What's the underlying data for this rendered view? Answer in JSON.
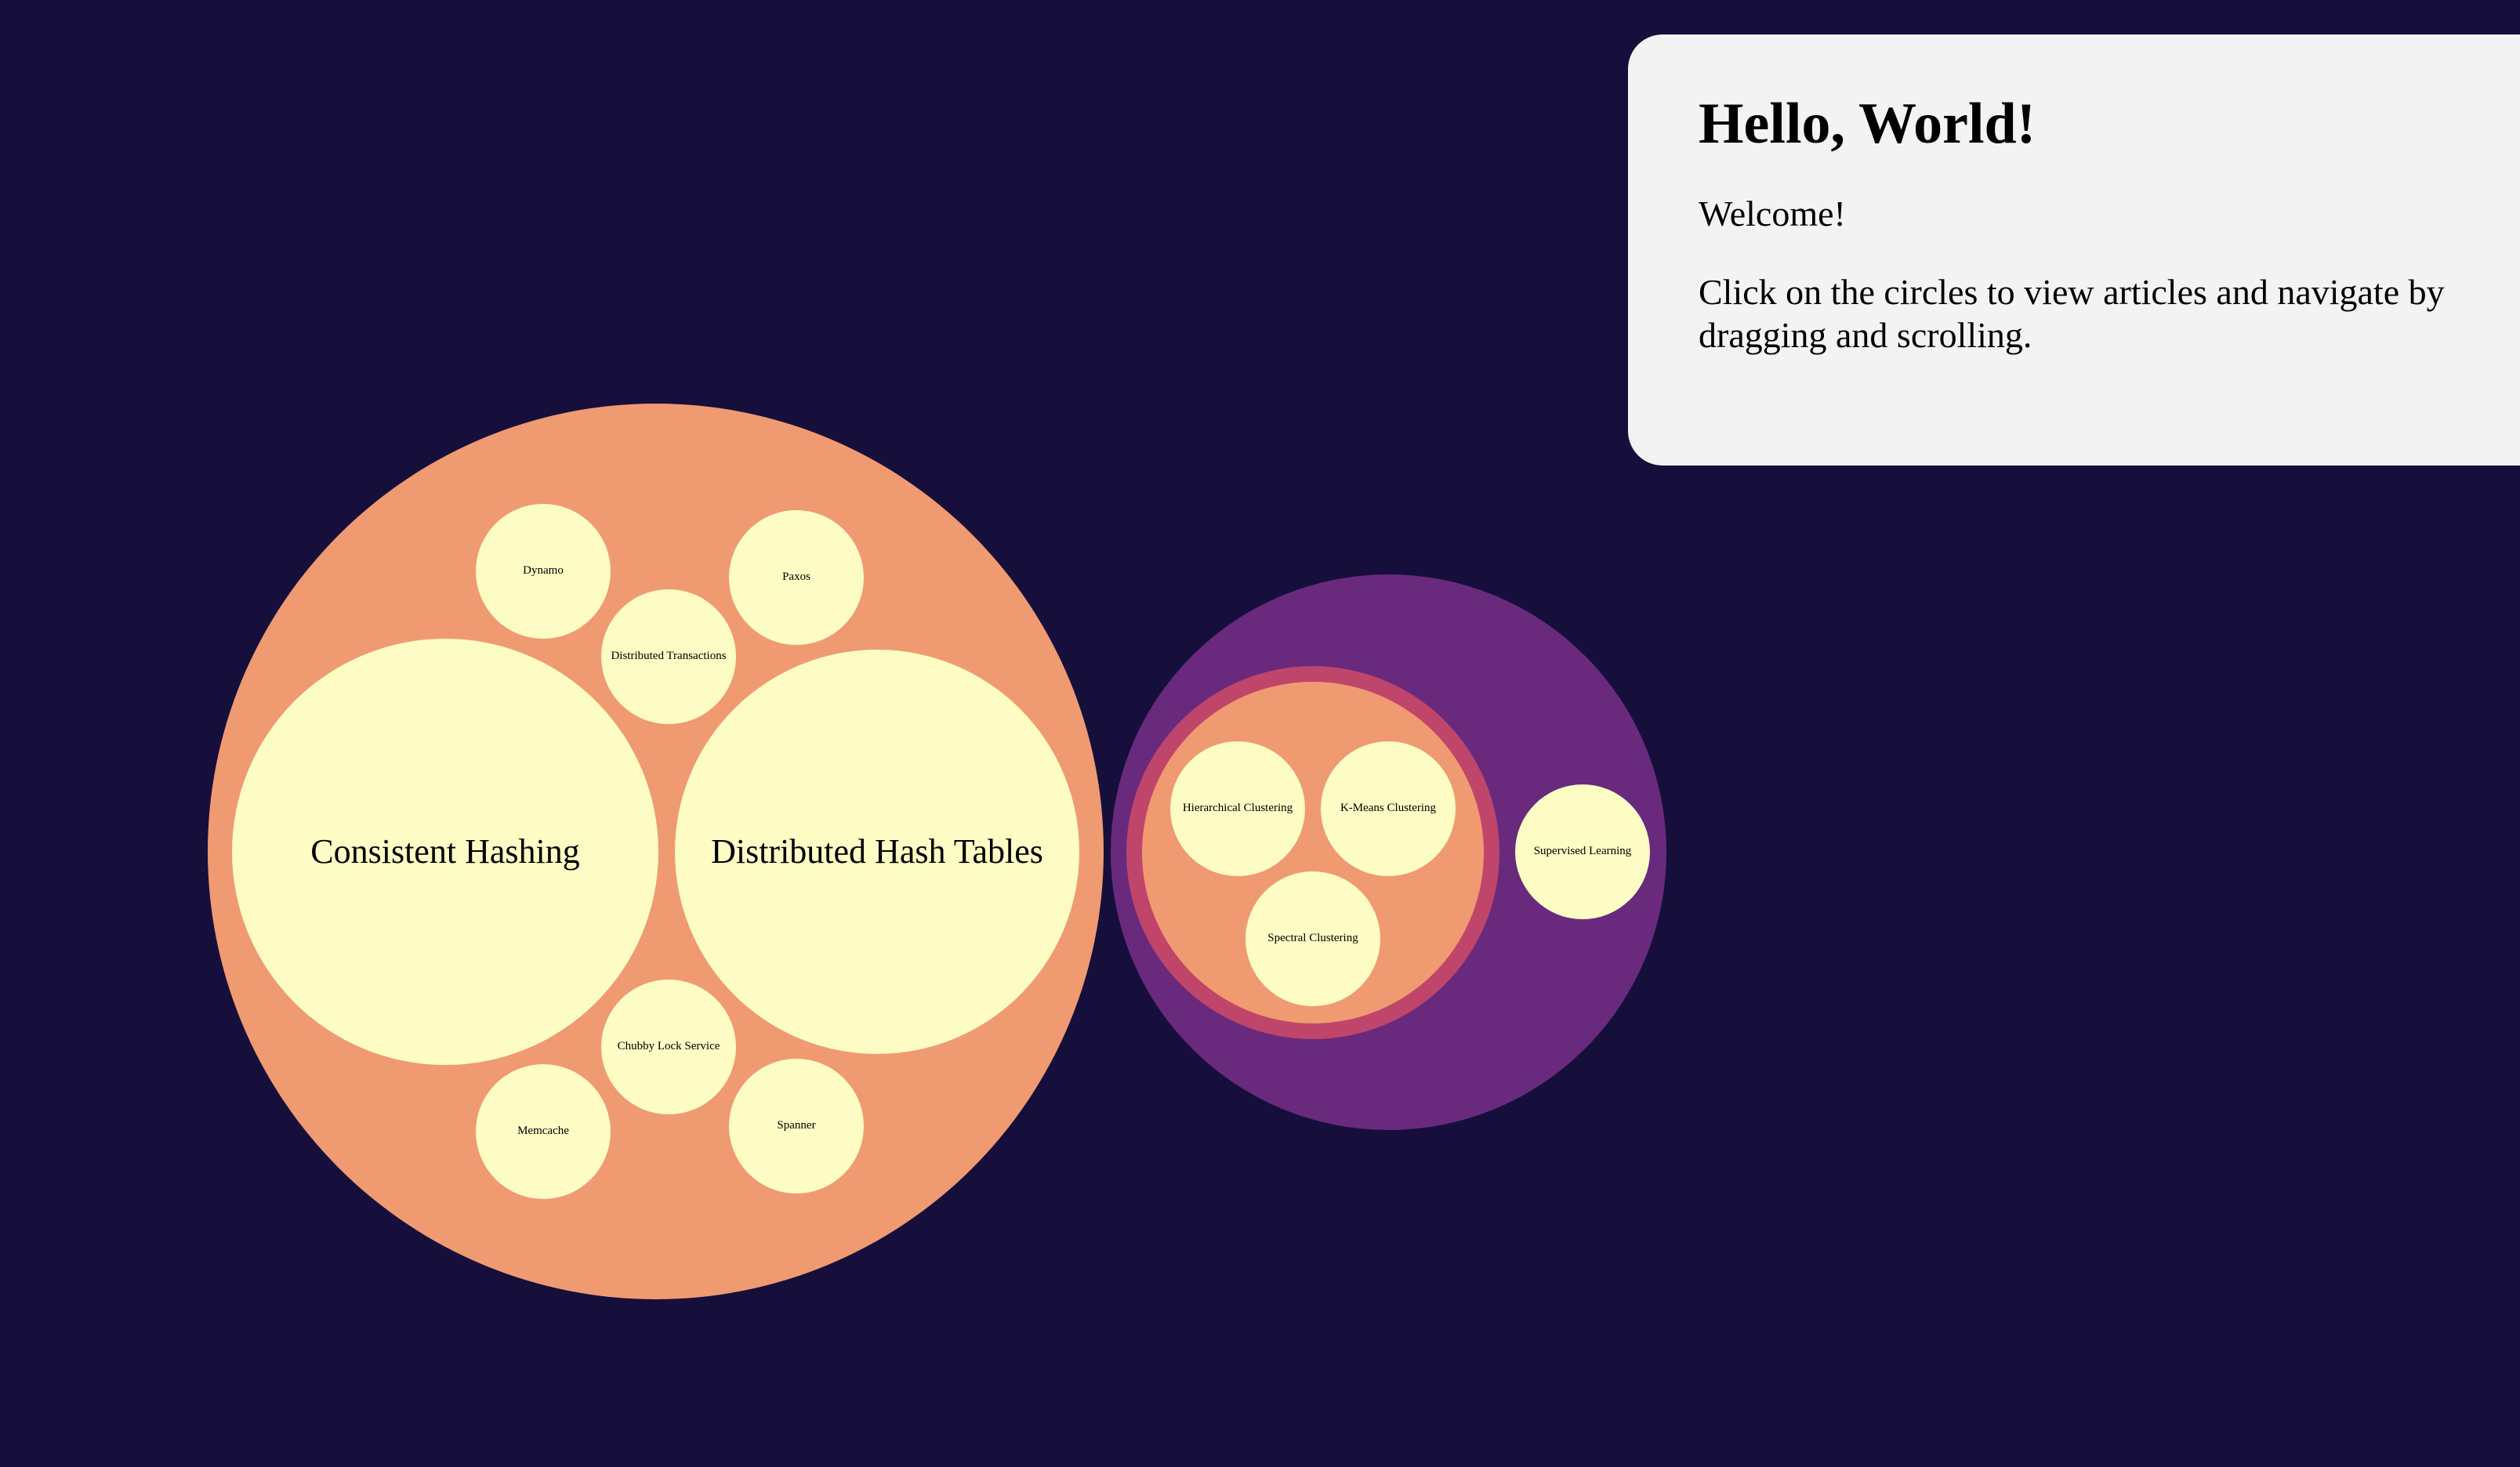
{
  "colors": {
    "background": "#160f3b",
    "leaf": "#fcfcc4",
    "cluster_salmon": "#f09a72",
    "cluster_purple": "#692a7d",
    "cluster_rose": "#c0456a",
    "panel": "#f3f3f4"
  },
  "info_panel": {
    "title": "Hello, World!",
    "welcome": "Welcome!",
    "instructions": "Click on the circles to view articles and navigate by dragging and scrolling."
  },
  "bubbles": {
    "distributed_systems": {
      "consistent_hashing": "Consistent Hashing",
      "distributed_hash_tables": "Distributed Hash Tables",
      "dynamo": "Dynamo",
      "paxos": "Paxos",
      "distributed_transactions": "Distributed Transactions",
      "chubby_lock_service": "Chubby Lock Service",
      "memcache": "Memcache",
      "spanner": "Spanner"
    },
    "machine_learning": {
      "hierarchical_clustering": "Hierarchical Clustering",
      "k_means_clustering": "K-Means Clustering",
      "spectral_clustering": "Spectral Clustering",
      "supervised_learning": "Supervised Learning"
    }
  }
}
